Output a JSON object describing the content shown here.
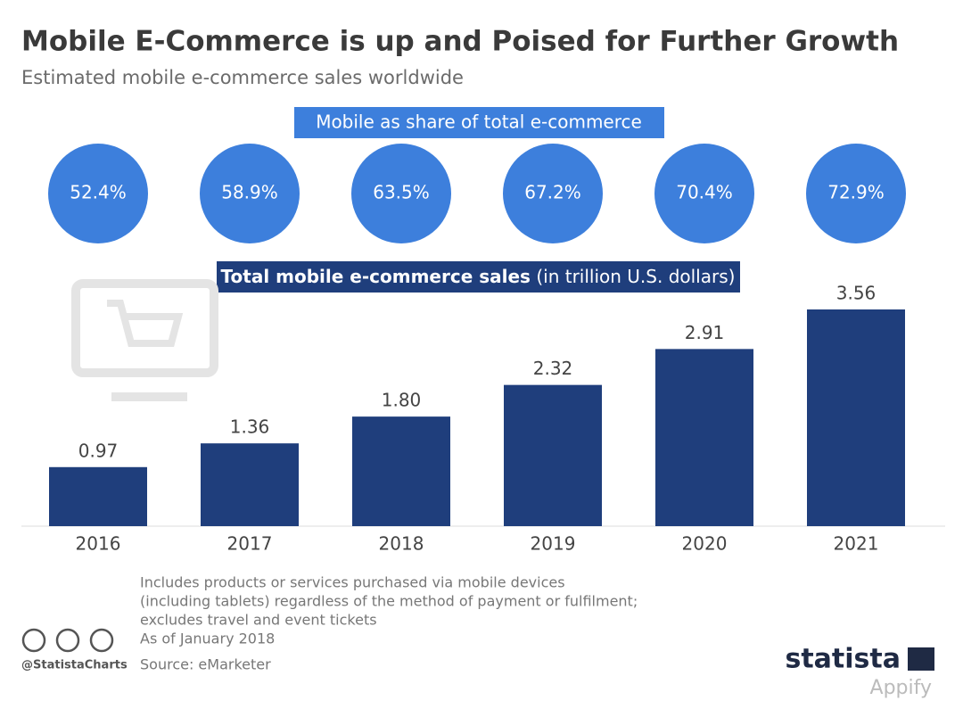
{
  "header": {
    "title": "Mobile E-Commerce is up and Poised for Further Growth",
    "subtitle": "Estimated mobile e-commerce sales worldwide"
  },
  "chart_data": [
    {
      "type": "circles",
      "title": "Mobile as share of total e-commerce",
      "color": "#3d7fdc",
      "categories": [
        "2016",
        "2017",
        "2018",
        "2019",
        "2020",
        "2021"
      ],
      "values": [
        52.4,
        58.9,
        63.5,
        67.2,
        70.4,
        72.9
      ],
      "value_labels": [
        "52.4%",
        "58.9%",
        "63.5%",
        "67.2%",
        "70.4%",
        "72.9%"
      ]
    },
    {
      "type": "bar",
      "title": "Total mobile e-commerce sales",
      "unit": "(in trillion U.S. dollars)",
      "color": "#1f3e7c",
      "categories": [
        "2016",
        "2017",
        "2018",
        "2019",
        "2020",
        "2021"
      ],
      "values": [
        0.97,
        1.36,
        1.8,
        2.32,
        2.91,
        3.56
      ],
      "value_labels": [
        "0.97",
        "1.36",
        "1.80",
        "2.32",
        "2.91",
        "3.56"
      ]
    }
  ],
  "footer": {
    "notes": [
      "Includes products or services purchased via mobile devices",
      "(including tablets) regardless of the method of payment or fulfilment;",
      "excludes travel and event tickets",
      "As of January 2018"
    ],
    "source": "Source: eMarketer",
    "handle": "@StatistaCharts",
    "brand": "statista",
    "watermark": "Appify"
  }
}
